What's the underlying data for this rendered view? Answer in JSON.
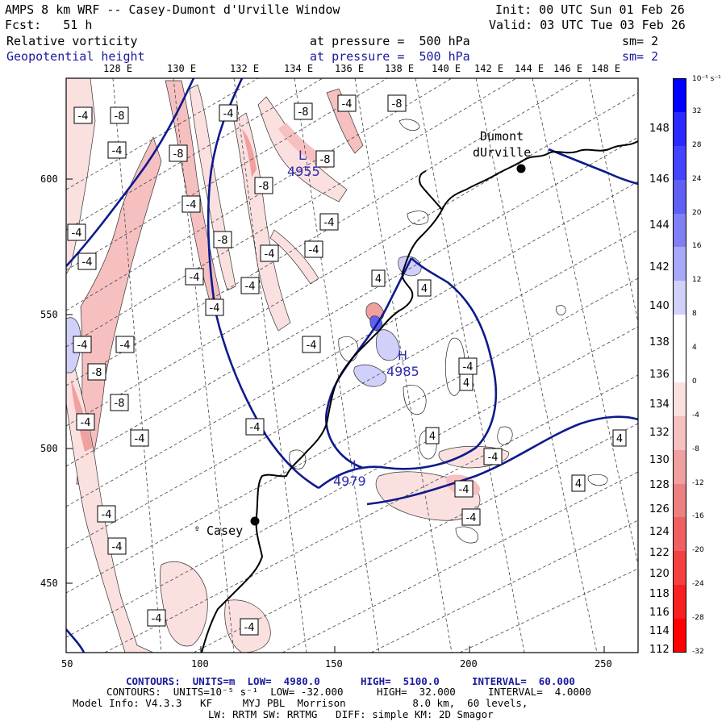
{
  "header": {
    "title": "AMPS 8 km WRF -- Casey-Dumont d'Urville Window",
    "init": "Init: 00 UTC Sun 01 Feb 26",
    "fcst": "Fcst:   51 h",
    "valid": "Valid: 03 UTC Tue 03 Feb 26",
    "field1": "Relative vorticity",
    "field1_level": "at pressure =  500 hPa",
    "field1_sm": "sm= 2",
    "field2": "Geopotential height",
    "field2_level": "at pressure =  500 hPa",
    "field2_sm": "sm= 2"
  },
  "top_axis": [
    "128 E",
    "130 E",
    "132 E",
    "134 E",
    "136 E",
    "138 E",
    "140 E",
    "142 E",
    "144 E",
    "146 E",
    "148 E"
  ],
  "right_axis": [
    "148 E",
    "146 E",
    "144 E",
    "142 E",
    "140 E",
    "138 E",
    "136 E",
    "134 E",
    "132 E",
    "130 E",
    "128 E",
    "126 E",
    "124 E",
    "122 E",
    "120 E",
    "118 E",
    "116 E",
    "114 E",
    "112 E"
  ],
  "left_axis": [
    "600",
    "550",
    "500",
    "450"
  ],
  "bottom_axis": [
    "50",
    "100",
    "150",
    "200",
    "250"
  ],
  "colorbar": {
    "unit": "10⁻⁵ s⁻¹",
    "labels": [
      "32",
      "28",
      "24",
      "20",
      "16",
      "12",
      "8",
      "4",
      "0",
      "-4",
      "-8",
      "-12",
      "-16",
      "-20",
      "-24",
      "-28",
      "-32"
    ],
    "colors": [
      "#0000ff",
      "#2a2aff",
      "#4444ff",
      "#6060f4",
      "#8080f4",
      "#a8a8f8",
      "#d0d0fb",
      "#ffffff",
      "#ffffff",
      "#fbe0e0",
      "#f6c0c0",
      "#f1a0a0",
      "#ec8080",
      "#f06060",
      "#f44040",
      "#f82020",
      "#ff0000"
    ]
  },
  "places": {
    "dumont": "Dumont\ndUrville",
    "casey": "Casey"
  },
  "height_centers": [
    {
      "type": "L",
      "value": "4955"
    },
    {
      "type": "H",
      "value": "4985"
    },
    {
      "type": "L",
      "value": "4979"
    }
  ],
  "contour_labels": [
    "-4",
    "-8",
    "-4",
    "-8",
    "-4",
    "-8",
    "-4",
    "-8",
    "-8",
    "-8",
    "-4",
    "-8",
    "-4",
    "-4",
    "-4",
    "-4",
    "-4",
    "-4",
    "-4",
    "-4",
    "4",
    "4",
    "-4",
    "4",
    "-4",
    "-4",
    "-8",
    "-8",
    "-4",
    "4",
    "-4",
    "-4",
    "4",
    "-4",
    "-4",
    "-4",
    "-4",
    "-4",
    "-4",
    "-4",
    "4",
    "-4"
  ],
  "footer": {
    "line1_a": "CONTOURS:  UNITS=m  LOW=  4980.0",
    "line1_b": "HIGH=  5100.0",
    "line1_c": "INTERVAL=  60.000",
    "line2_a": "CONTOURS:  UNITS=10⁻⁵ s⁻¹  LOW= -32.000",
    "line2_b": "HIGH=  32.000",
    "line2_c": "INTERVAL=  4.0000",
    "line3": "Model Info: V4.3.3   KF     MYJ PBL  Morrison           8.0 km,  60 levels,",
    "line4": "LW: RRTM SW: RRTMG   DIFF: simple KM: 2D Smagor"
  }
}
